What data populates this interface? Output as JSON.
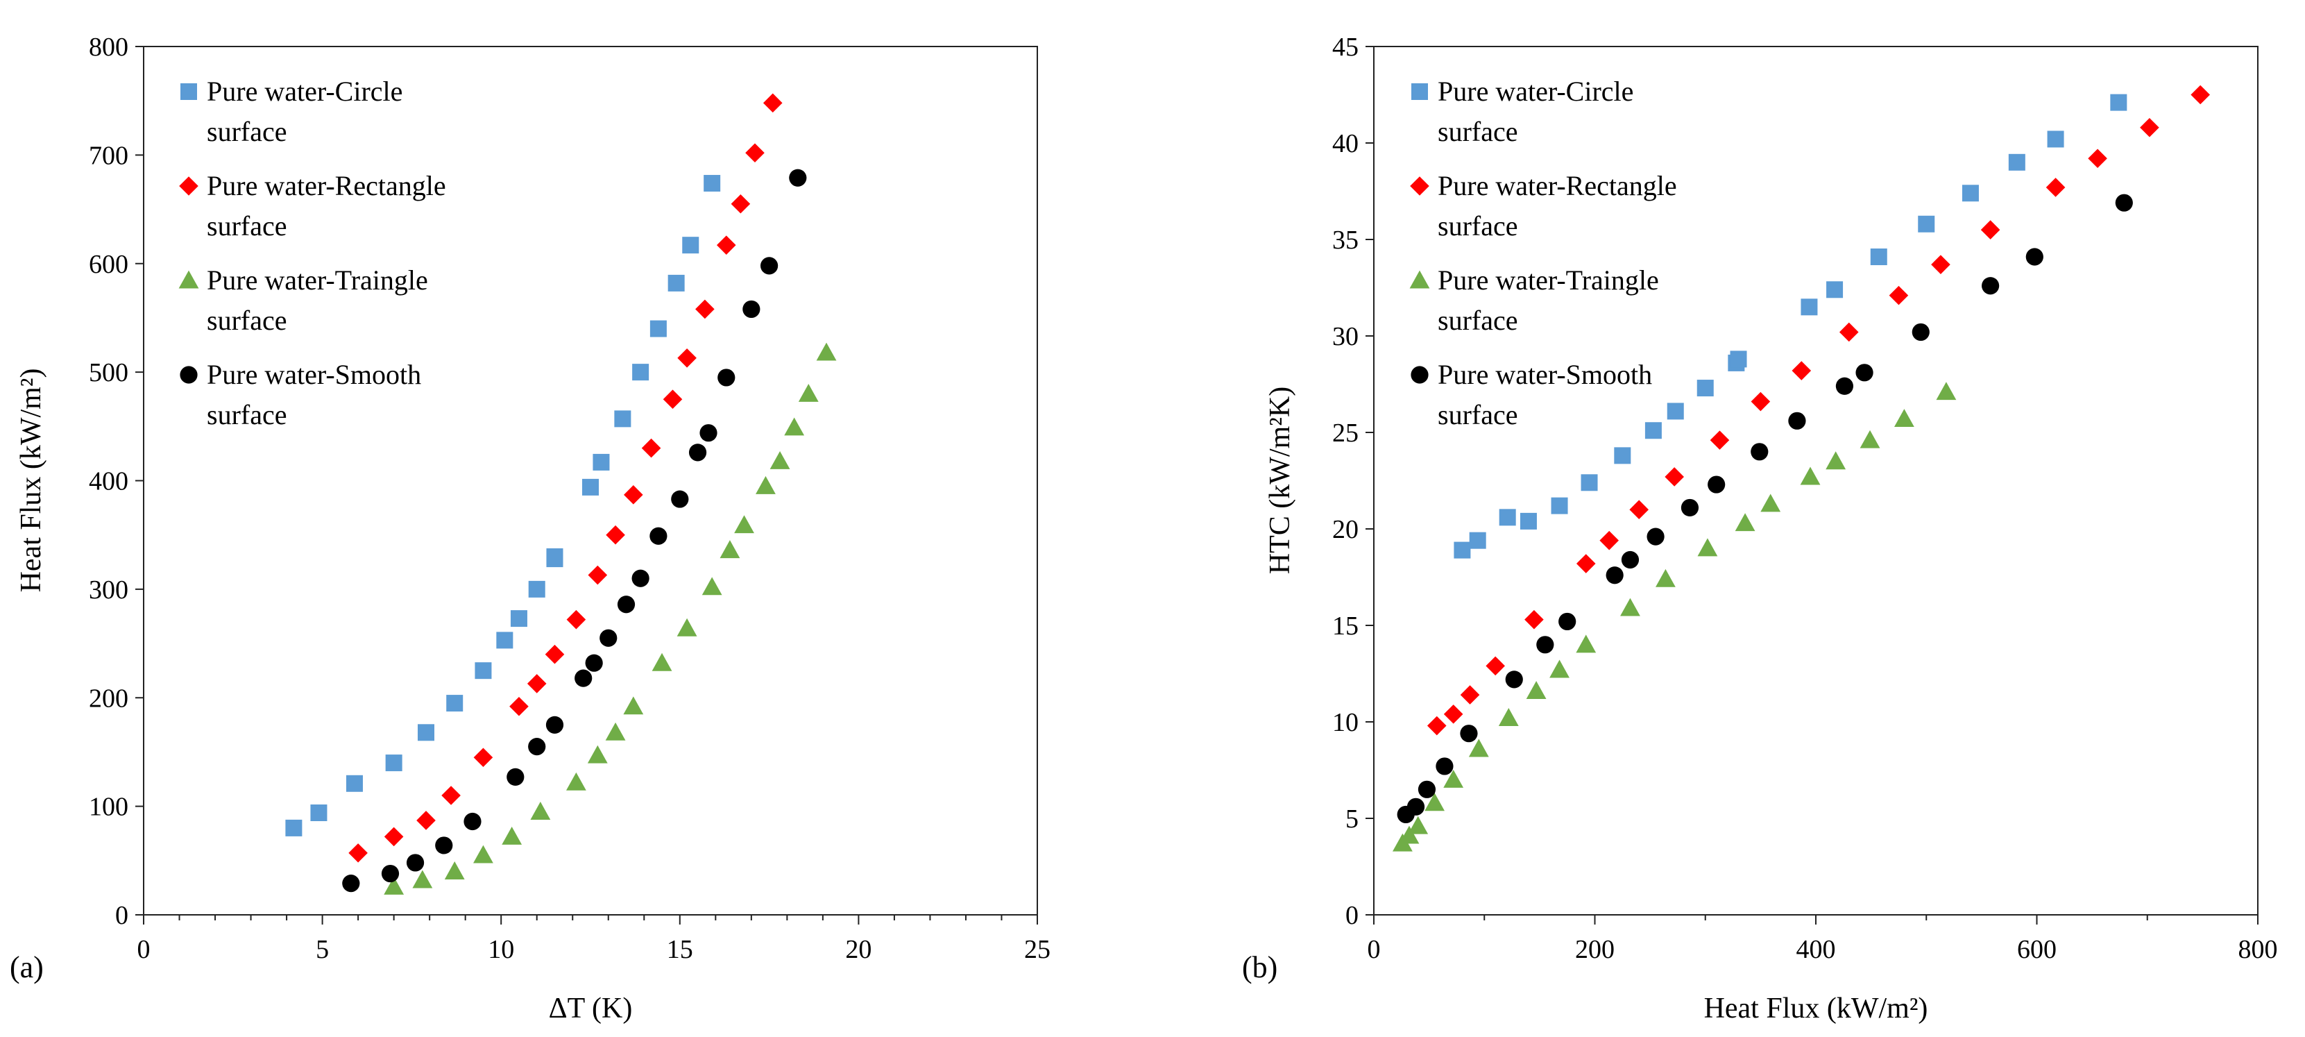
{
  "figure": {
    "panels": [
      "(a)",
      "(b)"
    ]
  },
  "chart_data": [
    {
      "type": "scatter",
      "title": "",
      "panel_label": "(a)",
      "xlabel": "ΔT (K)",
      "ylabel": "Heat Flux (kW/m²)",
      "xlim": [
        0,
        25
      ],
      "ylim": [
        0,
        800
      ],
      "xticks": [
        0,
        5,
        10,
        15,
        20,
        25
      ],
      "yticks": [
        0,
        100,
        200,
        300,
        400,
        500,
        600,
        700,
        800
      ],
      "legend_position": "top-left",
      "series": [
        {
          "name": "Pure water-Circle surface",
          "legend_lines": [
            "Pure water-Circle",
            "surface"
          ],
          "marker": "square",
          "color": "#5B9BD5",
          "x": [
            4.2,
            4.9,
            5.9,
            7.0,
            7.9,
            8.7,
            9.5,
            10.1,
            10.5,
            11.0,
            11.5,
            11.5,
            12.5,
            12.8,
            13.4,
            13.9,
            14.4,
            14.9,
            15.3,
            15.9
          ],
          "y": [
            80,
            94,
            121,
            140,
            168,
            195,
            225,
            253,
            273,
            300,
            328,
            330,
            394,
            417,
            457,
            500,
            540,
            582,
            617,
            674
          ]
        },
        {
          "name": "Pure water-Rectangle surface",
          "legend_lines": [
            "Pure water-Rectangle",
            "surface"
          ],
          "marker": "diamond",
          "color": "#FF0000",
          "x": [
            6.0,
            7.0,
            7.9,
            8.6,
            9.5,
            10.5,
            11.0,
            11.5,
            12.1,
            12.7,
            13.2,
            13.7,
            14.2,
            14.8,
            15.2,
            15.7,
            16.3,
            16.7,
            17.1,
            17.6
          ],
          "y": [
            57,
            72,
            87,
            110,
            145,
            192,
            213,
            240,
            272,
            313,
            350,
            387,
            430,
            475,
            513,
            558,
            617,
            655,
            702,
            748
          ]
        },
        {
          "name": "Pure water-Traingle surface",
          "legend_lines": [
            "Pure water-Traingle",
            "surface"
          ],
          "marker": "triangle",
          "color": "#70AD47",
          "x": [
            7.0,
            7.8,
            8.7,
            9.5,
            10.3,
            11.1,
            12.1,
            12.7,
            13.2,
            13.7,
            14.5,
            15.2,
            15.9,
            16.4,
            16.8,
            17.4,
            17.8,
            18.2,
            18.6,
            19.1
          ],
          "y": [
            26,
            32,
            40,
            55,
            72,
            95,
            122,
            147,
            168,
            192,
            232,
            264,
            302,
            336,
            359,
            395,
            418,
            449,
            480,
            518
          ]
        },
        {
          "name": "Pure water-Smooth surface",
          "legend_lines": [
            "Pure water-Smooth",
            "surface"
          ],
          "marker": "circle",
          "color": "#000000",
          "x": [
            5.8,
            6.9,
            7.6,
            8.4,
            9.2,
            10.4,
            11.0,
            11.5,
            12.3,
            12.6,
            13.0,
            13.5,
            13.9,
            14.4,
            15.0,
            15.5,
            15.8,
            16.3,
            17.0,
            17.5,
            18.3
          ],
          "y": [
            29,
            38,
            48,
            64,
            86,
            127,
            155,
            175,
            218,
            232,
            255,
            286,
            310,
            349,
            383,
            426,
            444,
            495,
            558,
            598,
            679
          ]
        }
      ]
    },
    {
      "type": "scatter",
      "title": "",
      "panel_label": "(b)",
      "xlabel": "Heat Flux (kW/m²)",
      "ylabel": "HTC (kW/m²K)",
      "xlim": [
        0,
        800
      ],
      "ylim": [
        0,
        45
      ],
      "xticks": [
        0,
        200,
        400,
        600,
        800
      ],
      "yticks": [
        0,
        5,
        10,
        15,
        20,
        25,
        30,
        35,
        40,
        45
      ],
      "legend_position": "top-left",
      "series": [
        {
          "name": "Pure water-Circle surface",
          "legend_lines": [
            "Pure water-Circle",
            "surface"
          ],
          "marker": "square",
          "color": "#5B9BD5",
          "x": [
            80,
            94,
            121,
            140,
            168,
            195,
            225,
            253,
            273,
            300,
            328,
            330,
            394,
            417,
            457,
            500,
            540,
            582,
            617,
            674
          ],
          "y": [
            18.9,
            19.4,
            20.6,
            20.4,
            21.2,
            22.4,
            23.8,
            25.1,
            26.1,
            27.3,
            28.6,
            28.8,
            31.5,
            32.4,
            34.1,
            35.8,
            37.4,
            39.0,
            40.2,
            42.1
          ]
        },
        {
          "name": "Pure water-Rectangle surface",
          "legend_lines": [
            "Pure water-Rectangle",
            "surface"
          ],
          "marker": "diamond",
          "color": "#FF0000",
          "x": [
            57,
            72,
            87,
            110,
            145,
            192,
            213,
            240,
            272,
            313,
            350,
            387,
            430,
            475,
            513,
            558,
            617,
            655,
            702,
            748
          ],
          "y": [
            9.8,
            10.4,
            11.4,
            12.9,
            15.3,
            18.2,
            19.4,
            21.0,
            22.7,
            24.6,
            26.6,
            28.2,
            30.2,
            32.1,
            33.7,
            35.5,
            37.7,
            39.2,
            40.8,
            42.5
          ]
        },
        {
          "name": "Pure water-Traingle surface",
          "legend_lines": [
            "Pure water-Traingle",
            "surface"
          ],
          "marker": "triangle",
          "color": "#70AD47",
          "x": [
            26,
            32,
            40,
            55,
            72,
            95,
            122,
            147,
            168,
            192,
            232,
            264,
            302,
            336,
            359,
            395,
            418,
            449,
            480,
            518
          ],
          "y": [
            3.7,
            4.1,
            4.6,
            5.8,
            7.0,
            8.6,
            10.2,
            11.6,
            12.7,
            14.0,
            15.9,
            17.4,
            19.0,
            20.3,
            21.3,
            22.7,
            23.5,
            24.6,
            25.7,
            27.1
          ]
        },
        {
          "name": "Pure water-Smooth surface",
          "legend_lines": [
            "Pure water-Smooth",
            "surface"
          ],
          "marker": "circle",
          "color": "#000000",
          "x": [
            29,
            38,
            48,
            64,
            86,
            127,
            155,
            175,
            218,
            232,
            255,
            286,
            310,
            349,
            383,
            426,
            444,
            495,
            558,
            598,
            679
          ],
          "y": [
            5.2,
            5.6,
            6.5,
            7.7,
            9.4,
            12.2,
            14.0,
            15.2,
            17.6,
            18.4,
            19.6,
            21.1,
            22.3,
            24.0,
            25.6,
            27.4,
            28.1,
            30.2,
            32.6,
            34.1,
            36.9
          ]
        }
      ]
    }
  ]
}
